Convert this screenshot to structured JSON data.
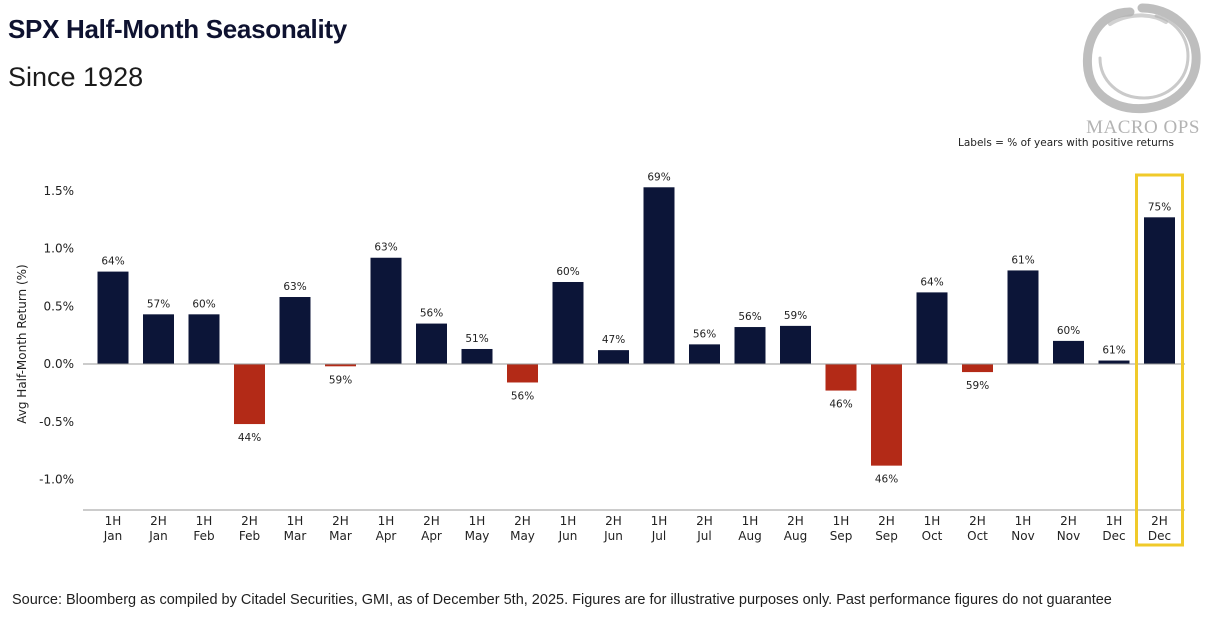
{
  "title": "SPX Half-Month Seasonality",
  "subtitle": "Since 1928",
  "logo_text": "MACRO OPS",
  "labels_note": "Labels = % of years with positive returns",
  "source": "Source: Bloomberg as compiled by Citadel Securities, GMI, as of December 5th, 2025. Figures are for illustrative purposes only. Past performance figures do not guarantee",
  "colors": {
    "positive": "#0c1538",
    "negative": "#b32a17",
    "highlight": "#f0ca2a",
    "logo": "#b3b3b3"
  },
  "chart_data": {
    "type": "bar",
    "title": "SPX Half-Month Seasonality",
    "subtitle": "Since 1928",
    "xlabel": "",
    "ylabel": "Avg Half-Month Return (%)",
    "ylim": [
      -1.3,
      1.7
    ],
    "yticks": [
      1.5,
      1.0,
      0.5,
      0.0,
      -0.5,
      -1.0
    ],
    "ytick_labels": [
      "1.5%",
      "1.0%",
      "0.5%",
      "0.0%",
      "-0.5%",
      "-1.0%"
    ],
    "categories": [
      [
        "1H",
        "Jan"
      ],
      [
        "2H",
        "Jan"
      ],
      [
        "1H",
        "Feb"
      ],
      [
        "2H",
        "Feb"
      ],
      [
        "1H",
        "Mar"
      ],
      [
        "2H",
        "Mar"
      ],
      [
        "1H",
        "Apr"
      ],
      [
        "2H",
        "Apr"
      ],
      [
        "1H",
        "May"
      ],
      [
        "2H",
        "May"
      ],
      [
        "1H",
        "Jun"
      ],
      [
        "2H",
        "Jun"
      ],
      [
        "1H",
        "Jul"
      ],
      [
        "2H",
        "Jul"
      ],
      [
        "1H",
        "Aug"
      ],
      [
        "2H",
        "Aug"
      ],
      [
        "1H",
        "Sep"
      ],
      [
        "2H",
        "Sep"
      ],
      [
        "1H",
        "Oct"
      ],
      [
        "2H",
        "Oct"
      ],
      [
        "1H",
        "Nov"
      ],
      [
        "2H",
        "Nov"
      ],
      [
        "1H",
        "Dec"
      ],
      [
        "2H",
        "Dec"
      ]
    ],
    "values": [
      0.8,
      0.43,
      0.43,
      -0.52,
      0.58,
      -0.02,
      0.92,
      0.35,
      0.13,
      -0.16,
      0.71,
      0.12,
      1.53,
      0.17,
      0.32,
      0.33,
      -0.23,
      -0.88,
      0.62,
      -0.07,
      0.81,
      0.2,
      0.03,
      1.27
    ],
    "data_labels": [
      "64%",
      "57%",
      "60%",
      "44%",
      "63%",
      "59%",
      "63%",
      "56%",
      "51%",
      "56%",
      "60%",
      "47%",
      "69%",
      "56%",
      "56%",
      "59%",
      "46%",
      "46%",
      "64%",
      "59%",
      "61%",
      "60%",
      "61%",
      "75%"
    ],
    "highlight_index": 23,
    "grid": false
  }
}
